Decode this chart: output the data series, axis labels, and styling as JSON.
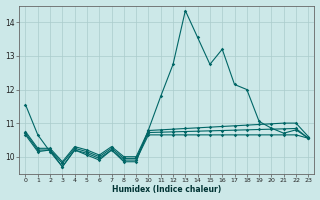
{
  "xlabel": "Humidex (Indice chaleur)",
  "bg_color": "#cce8e8",
  "grid_color": "#aacccc",
  "line_color": "#006666",
  "x": [
    0,
    1,
    2,
    3,
    4,
    5,
    6,
    7,
    8,
    9,
    10,
    11,
    12,
    13,
    14,
    15,
    16,
    17,
    18,
    19,
    20,
    21,
    22,
    23
  ],
  "lines": [
    [
      11.55,
      10.65,
      10.15,
      9.7,
      10.2,
      10.05,
      9.9,
      10.2,
      9.85,
      9.85,
      10.8,
      11.8,
      12.75,
      14.35,
      13.55,
      12.75,
      13.2,
      12.15,
      12.0,
      11.05,
      10.85,
      10.7,
      10.8,
      10.55
    ],
    [
      10.65,
      10.15,
      10.2,
      9.7,
      10.2,
      10.1,
      9.95,
      10.2,
      9.9,
      9.9,
      10.65,
      10.65,
      10.65,
      10.65,
      10.65,
      10.65,
      10.65,
      10.65,
      10.65,
      10.65,
      10.65,
      10.65,
      10.65,
      10.55
    ],
    [
      10.7,
      10.2,
      10.2,
      9.8,
      10.25,
      10.15,
      10.0,
      10.25,
      9.95,
      9.95,
      10.72,
      10.73,
      10.74,
      10.75,
      10.76,
      10.77,
      10.78,
      10.79,
      10.8,
      10.81,
      10.82,
      10.83,
      10.84,
      10.55
    ],
    [
      10.75,
      10.25,
      10.25,
      9.85,
      10.3,
      10.2,
      10.05,
      10.3,
      10.0,
      10.0,
      10.78,
      10.8,
      10.82,
      10.84,
      10.86,
      10.88,
      10.9,
      10.92,
      10.94,
      10.96,
      10.98,
      11.0,
      11.0,
      10.6
    ]
  ],
  "ylim": [
    9.5,
    14.5
  ],
  "yticks": [
    10,
    11,
    12,
    13,
    14
  ],
  "xlim": [
    -0.5,
    23.5
  ],
  "xticks": [
    0,
    1,
    2,
    3,
    4,
    5,
    6,
    7,
    8,
    9,
    10,
    11,
    12,
    13,
    14,
    15,
    16,
    17,
    18,
    19,
    20,
    21,
    22,
    23
  ]
}
